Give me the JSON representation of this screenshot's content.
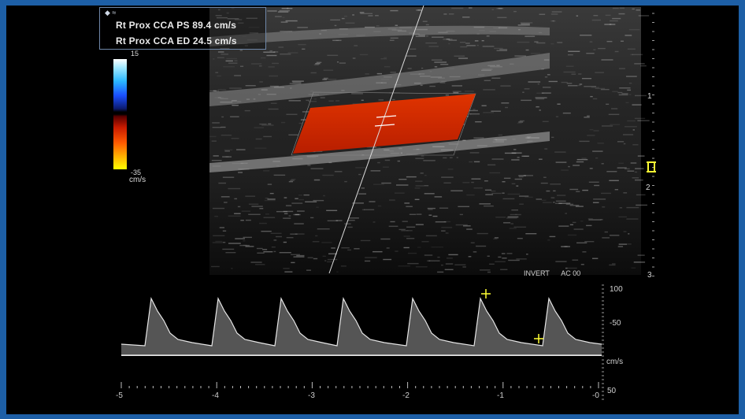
{
  "measurements": {
    "header": "◆ ≈",
    "rows": [
      {
        "label": "Rt Prox  CCA PS",
        "value": "89.4 cm/s"
      },
      {
        "label": "Rt Prox  CCA ED",
        "value": "24.5 cm/s"
      }
    ]
  },
  "color_scale": {
    "top": "15",
    "bottom": "-35",
    "unit": "cm/s",
    "colors": [
      "#ffffff",
      "#2bb8ff",
      "#1a4fff",
      "#000000",
      "#c81a00",
      "#ff5a00",
      "#ffff00"
    ]
  },
  "depth_scale": {
    "labels": [
      "1",
      "2",
      "3"
    ]
  },
  "doppler": {
    "info_left": "INVERT",
    "info_right": "AC 00",
    "velocity_labels": [
      "100",
      "-50",
      "cm/s",
      "50"
    ],
    "time_labels": [
      "-5",
      "-4",
      "-3",
      "-2",
      "-1",
      "-0"
    ]
  },
  "colors": {
    "frame": "#1d5fa6",
    "flow": "#d42a00",
    "marker": "#ffff33"
  }
}
